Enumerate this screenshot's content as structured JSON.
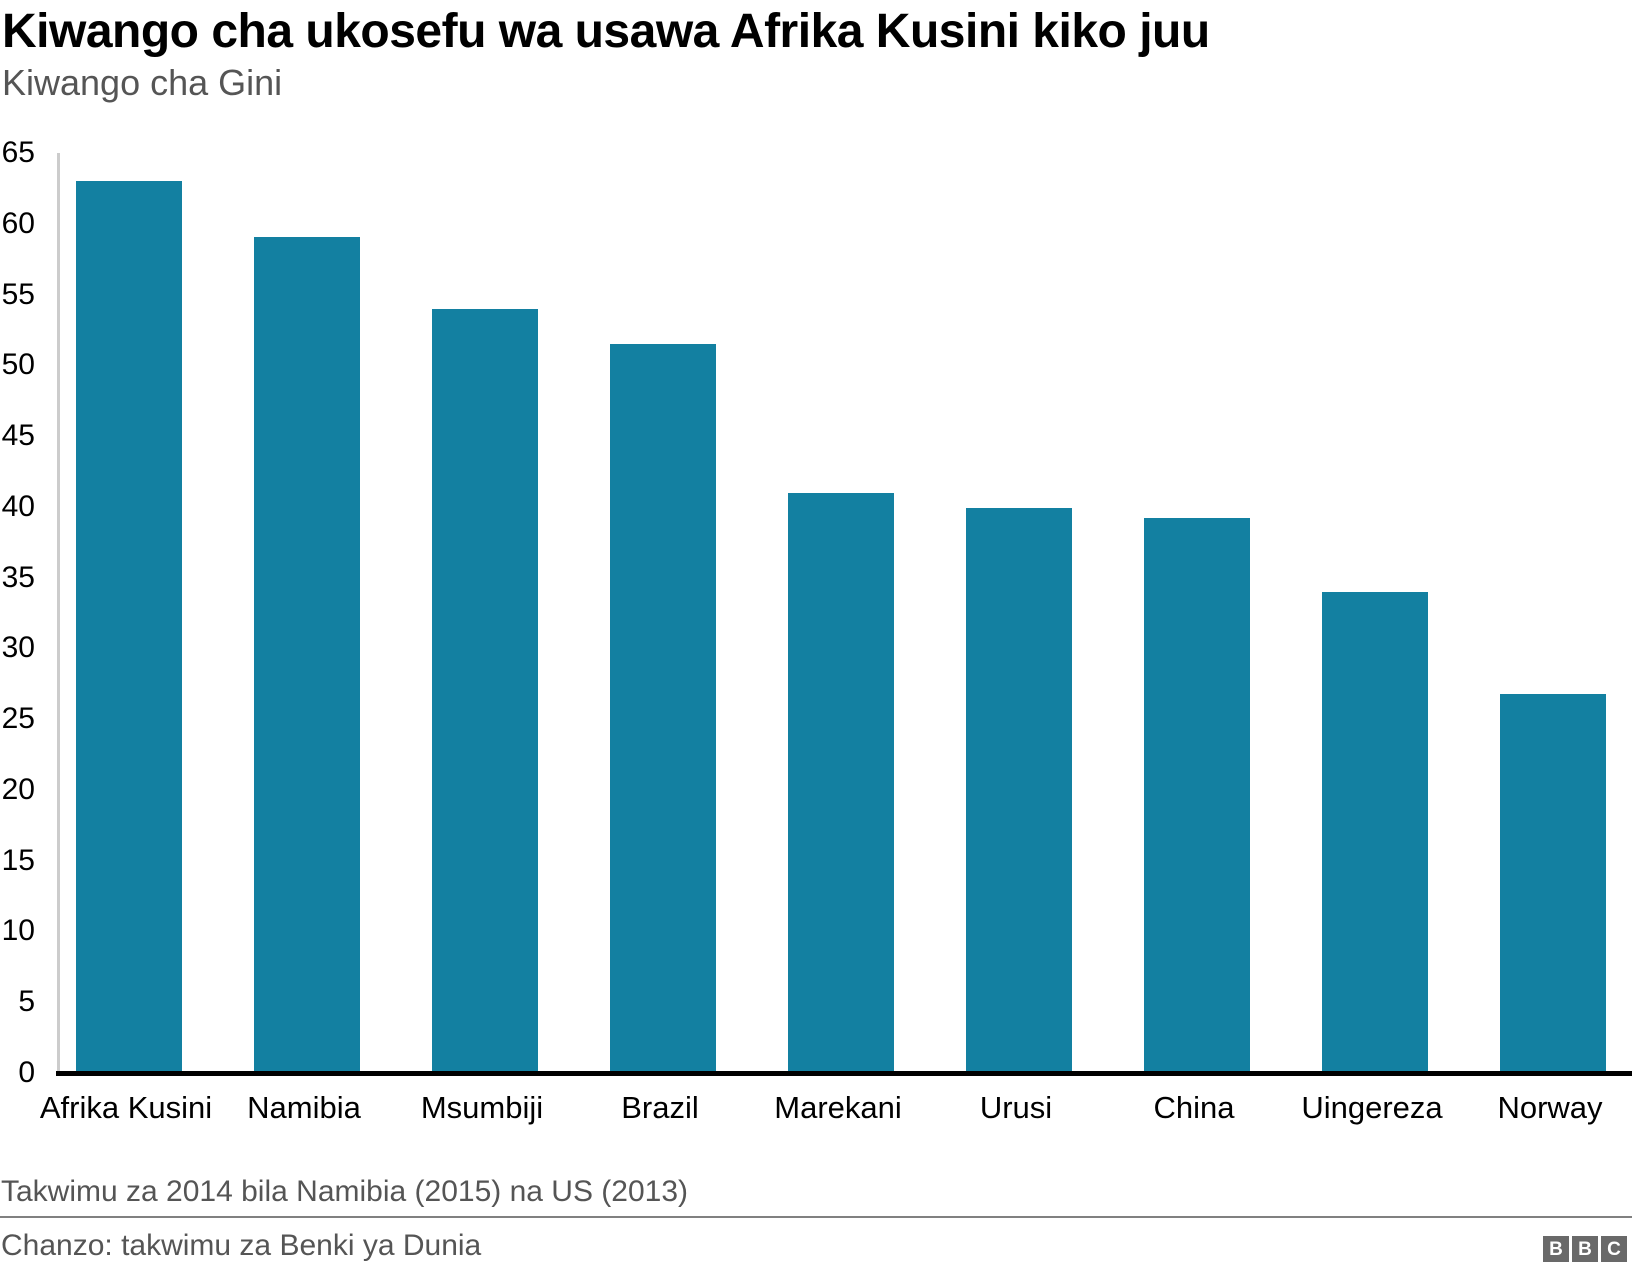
{
  "header": {
    "title": "Kiwango cha ukosefu wa usawa Afrika Kusini kiko juu",
    "subtitle": "Kiwango cha Gini"
  },
  "footer": {
    "note": "Takwimu za 2014 bila Namibia (2015) na US (2013)",
    "source": "Chanzo: takwimu za Benki ya Dunia",
    "logo_letters": [
      "B",
      "B",
      "C"
    ]
  },
  "colors": {
    "bar": "#1380A1",
    "axis_line": "#cccccc",
    "baseline": "#000000",
    "divider": "#808080",
    "logo_bg": "#696969",
    "muted_text": "#555555"
  },
  "chart_data": {
    "type": "bar",
    "title": "Kiwango cha ukosefu wa usawa Afrika Kusini kiko juu",
    "subtitle": "Kiwango cha Gini",
    "xlabel": "",
    "ylabel": "Kiwango cha Gini",
    "categories": [
      "Afrika Kusini",
      "Namibia",
      "Msumbiji",
      "Brazil",
      "Marekani",
      "Urusi",
      "China",
      "Uingereza",
      "Norway"
    ],
    "values": [
      63,
      59.1,
      54,
      51.5,
      41,
      39.9,
      39.2,
      34,
      26.8
    ],
    "ylim": [
      0,
      65
    ],
    "yticks": [
      0,
      5,
      10,
      15,
      20,
      25,
      30,
      35,
      40,
      45,
      50,
      55,
      60,
      65
    ],
    "grid": false,
    "legend": "none",
    "footnote": "Takwimu za 2014 bila Namibia (2015) na US (2013)",
    "source": "Chanzo: takwimu za Benki ya Dunia"
  }
}
